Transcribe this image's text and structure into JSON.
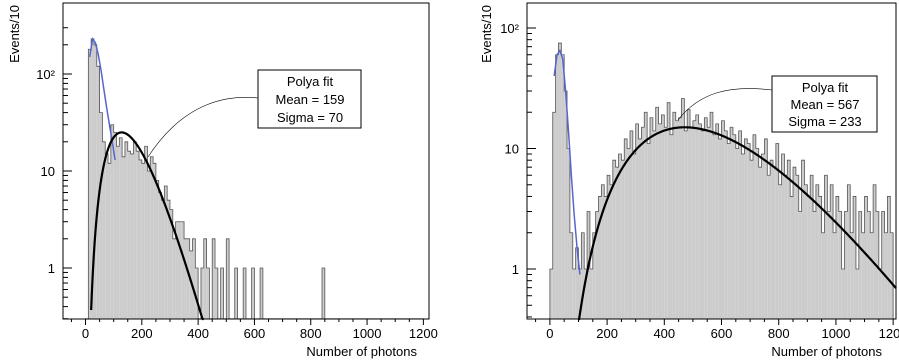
{
  "chart_data": [
    {
      "type": "histogram",
      "xlabel": "Number of photons",
      "ylabel": "Events/10",
      "xlim": [
        -80,
        1220
      ],
      "ylim": [
        0.3,
        300
      ],
      "yscale": "log",
      "xticks": [
        0,
        200,
        400,
        600,
        800,
        1000,
        1200
      ],
      "xtick_labels": [
        "0",
        "200",
        "400",
        "600",
        "800",
        "1000",
        "1200"
      ],
      "yticks": [
        1,
        10,
        100
      ],
      "ytick_labels": [
        "1",
        "10",
        "10²"
      ],
      "bin_width": 10,
      "bins": {
        "x_start": 0,
        "counts": [
          0.3,
          180,
          230,
          200,
          120,
          40,
          20,
          15,
          12,
          30,
          25,
          18,
          22,
          14,
          20,
          16,
          15,
          20,
          16,
          13,
          12,
          18,
          10,
          14,
          12,
          8,
          6,
          5,
          7,
          5,
          4,
          2,
          3,
          3,
          3,
          2,
          2,
          1.5,
          2,
          1,
          0.3,
          1,
          2,
          1,
          0.3,
          2,
          1,
          0.3,
          1,
          0.3,
          2,
          0.3,
          0.3,
          1,
          0.3,
          0.3,
          1,
          0.3,
          0.3,
          1,
          0.3,
          0.3,
          1,
          0.3,
          0.3,
          0.3,
          0.3,
          0.3,
          0.3,
          0.3,
          0.3,
          0.3,
          0.3,
          0.3,
          0.3,
          0.3,
          0.3,
          0.3,
          0.3,
          0.3,
          0.3,
          0.3,
          0.3,
          0.3,
          1,
          0.3,
          0.3,
          0.3,
          0.3,
          0.3,
          0.3,
          0.3,
          0.3,
          0.3,
          0.3,
          0.3,
          0.3,
          0.3,
          0.3,
          0.3,
          0.3,
          0.3,
          0.3,
          0.3,
          0.3,
          0.3,
          0.3,
          0.3,
          0.3,
          0.3,
          0.3,
          0.3,
          0.3,
          0.3,
          0.3,
          0.3,
          0.3,
          0.3,
          0.3,
          0.3
        ]
      },
      "pedestal_fit": {
        "color": "#5566cc",
        "x": [
          15,
          25,
          35,
          45,
          55,
          65,
          75,
          85,
          95,
          105
        ],
        "y": [
          150,
          230,
          210,
          160,
          110,
          70,
          45,
          30,
          20,
          13
        ]
      },
      "polya_fit": {
        "color": "#000000",
        "mean": 159,
        "sigma": 70,
        "peak_x": 115,
        "peak_y": 25
      },
      "fit_box": {
        "title": "Polya fit",
        "mean_label": "Mean = 159",
        "sigma_label": "Sigma = 70"
      }
    },
    {
      "type": "histogram",
      "xlabel": "Number of photons",
      "ylabel": "Events/10",
      "xlim": [
        -80,
        1210
      ],
      "ylim": [
        0.3,
        200
      ],
      "yscale": "log",
      "xticks": [
        0,
        200,
        400,
        600,
        800,
        1000,
        1200
      ],
      "xtick_labels": [
        "0",
        "200",
        "400",
        "600",
        "800",
        "1000",
        "1200"
      ],
      "yticks": [
        1,
        10,
        100
      ],
      "ytick_labels": [
        "1",
        "10",
        "10²"
      ],
      "bin_width": 10,
      "bins": {
        "x_start": 0,
        "counts": [
          1,
          20,
          60,
          75,
          60,
          30,
          10,
          2,
          1,
          1.5,
          1,
          2,
          1,
          3,
          1,
          2,
          3,
          4,
          5,
          4,
          6,
          5,
          8,
          7,
          9,
          8,
          12,
          10,
          14,
          9,
          16,
          12,
          15,
          20,
          11,
          18,
          14,
          22,
          16,
          19,
          15,
          24,
          13,
          20,
          17,
          18,
          26,
          14,
          21,
          15,
          17,
          19,
          16,
          14,
          18,
          15,
          20,
          13,
          16,
          12,
          17,
          14,
          11,
          15,
          13,
          10,
          14,
          9,
          12,
          11,
          8,
          13,
          10,
          7,
          9,
          12,
          6,
          8,
          7,
          11,
          5,
          9,
          6,
          8,
          4,
          7,
          6,
          3,
          8,
          5,
          4,
          6,
          3,
          5,
          4,
          2,
          6,
          3,
          5,
          2,
          4,
          3,
          1,
          3,
          5,
          2,
          4,
          1,
          3,
          2,
          4,
          3,
          2,
          5,
          3,
          1,
          3,
          2,
          4,
          2
        ]
      },
      "pedestal_fit": {
        "color": "#5566cc",
        "x": [
          15,
          25,
          35,
          45,
          55,
          65,
          75,
          85,
          95,
          105
        ],
        "y": [
          40,
          60,
          65,
          55,
          30,
          14,
          6,
          2.8,
          1.5,
          0.9
        ]
      },
      "polya_fit": {
        "color": "#000000",
        "mean": 567,
        "sigma": 233,
        "peak_x": 470,
        "peak_y": 15
      },
      "fit_box": {
        "title": "Polya fit",
        "mean_label": "Mean = 567",
        "sigma_label": "Sigma = 233"
      }
    }
  ]
}
